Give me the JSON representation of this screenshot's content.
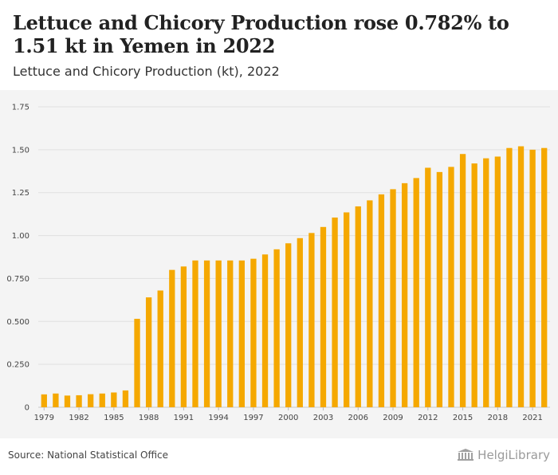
{
  "title": "Lettuce and Chicory Production rose 0.782% to 1.51 kt in Yemen in 2022",
  "subtitle": "Lettuce and Chicory Production (kt), 2022",
  "source": "Source: National Statistical Office",
  "logo_text": "HelgiLibrary",
  "colors": {
    "bar": "#f5a800",
    "plot_bg": "#f4f4f4",
    "grid": "#e0e0e0"
  },
  "chart_data": {
    "type": "bar",
    "title": "",
    "xlabel": "",
    "ylabel": "",
    "ylim": [
      0,
      1.75
    ],
    "grid": true,
    "yticks": [
      "0",
      "0.250",
      "0.500",
      "0.750",
      "1.00",
      "1.25",
      "1.50",
      "1.75"
    ],
    "ytick_values": [
      0,
      0.25,
      0.5,
      0.75,
      1.0,
      1.25,
      1.5,
      1.75
    ],
    "xtick_labels": [
      "1979",
      "1982",
      "1985",
      "1988",
      "1991",
      "1994",
      "1997",
      "2000",
      "2003",
      "2006",
      "2009",
      "2012",
      "2015",
      "2018",
      "2021"
    ],
    "categories": [
      "1979",
      "1980",
      "1981",
      "1982",
      "1983",
      "1984",
      "1985",
      "1986",
      "1987",
      "1988",
      "1989",
      "1990",
      "1991",
      "1992",
      "1993",
      "1994",
      "1995",
      "1996",
      "1997",
      "1998",
      "1999",
      "2000",
      "2001",
      "2002",
      "2003",
      "2004",
      "2005",
      "2006",
      "2007",
      "2008",
      "2009",
      "2010",
      "2011",
      "2012",
      "2013",
      "2014",
      "2015",
      "2016",
      "2017",
      "2018",
      "2019",
      "2020",
      "2021",
      "2022"
    ],
    "values": [
      0.075,
      0.08,
      0.068,
      0.07,
      0.076,
      0.08,
      0.086,
      0.098,
      0.515,
      0.64,
      0.68,
      0.8,
      0.82,
      0.855,
      0.855,
      0.855,
      0.855,
      0.855,
      0.865,
      0.89,
      0.92,
      0.955,
      0.985,
      1.015,
      1.05,
      1.105,
      1.135,
      1.17,
      1.205,
      1.24,
      1.27,
      1.305,
      1.335,
      1.395,
      1.37,
      1.4,
      1.475,
      1.42,
      1.45,
      1.46,
      1.51,
      1.52,
      1.5,
      1.51
    ]
  }
}
